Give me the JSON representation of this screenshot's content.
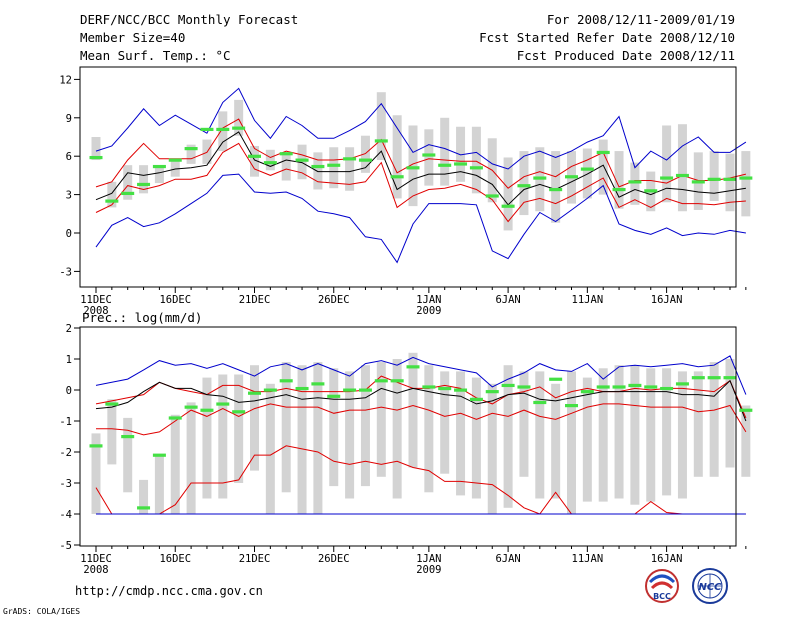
{
  "header": {
    "title": "DERF/NCC/BCC Monthly Forecast",
    "member_size": "Member Size=40",
    "variable": "Mean Surf. Temp.: °C",
    "forecast_period": "For 2008/12/11-2009/01/19",
    "fcst_started": "Fcst Started Refer Date 2008/12/10",
    "fcst_produced": "Fcst Produced Date 2008/12/11"
  },
  "footer": {
    "url": "http://cmdp.ncc.cma.gov.cn",
    "grads": "GrADS: COLA/IGES",
    "logo_bcc": "BCC",
    "logo_ncc": "NCC"
  },
  "colors": {
    "box": "#d3d3d3",
    "median": "#44e044",
    "mean": "#000000",
    "std": "#e00000",
    "extreme": "#0000cc"
  },
  "chart_data": [
    {
      "type": "box",
      "title": "Mean Surf. Temp.: °C",
      "x_tick_labels": [
        "11DEC",
        "16DEC",
        "21DEC",
        "26DEC",
        "1JAN",
        "6JAN",
        "11JAN",
        "16JAN"
      ],
      "x_tick_days": [
        0,
        5,
        10,
        15,
        21,
        26,
        31,
        36
      ],
      "year_labels": [
        {
          "day": 0,
          "text": "2008"
        },
        {
          "day": 21,
          "text": "2009"
        }
      ],
      "ylim": [
        -4,
        13
      ],
      "yticks": [
        -3,
        0,
        3,
        6,
        9,
        12
      ],
      "series": [
        {
          "name": "max",
          "color": "#0000cc",
          "values": [
            6.4,
            6.8,
            8.2,
            9.7,
            8.4,
            9.2,
            8.5,
            7.8,
            10.2,
            11.3,
            8.8,
            7.4,
            9.1,
            8.4,
            7.4,
            7.4,
            8,
            8.7,
            10.1,
            8.2,
            6.3,
            6.9,
            6.6,
            6.1,
            6.3,
            5.4,
            5,
            6,
            6.4,
            5.9,
            6.4,
            7.1,
            7.6,
            9.1,
            5.1,
            6.4,
            5.7,
            6.8,
            7.5,
            6.3,
            6.3,
            7.1
          ]
        },
        {
          "name": "plus_std",
          "color": "#e00000",
          "values": [
            3.6,
            4,
            5.7,
            7,
            5.8,
            5.8,
            5.8,
            6.3,
            8.2,
            8.9,
            6.6,
            5.9,
            6.4,
            6.1,
            5.7,
            5.7,
            5.8,
            6.2,
            7.3,
            4.7,
            5.4,
            5.8,
            5.7,
            5.6,
            5.6,
            4.9,
            3.5,
            4.4,
            4.8,
            4.4,
            5.2,
            5.7,
            6.3,
            3.6,
            4.1,
            4.1,
            3.9,
            4.5,
            4.1,
            4.1,
            4.3,
            4.6
          ]
        },
        {
          "name": "mean",
          "color": "#000000",
          "values": [
            2.6,
            3.1,
            4.7,
            4.5,
            4.7,
            5,
            5.1,
            5.3,
            7.1,
            7.9,
            5.7,
            5.2,
            5.7,
            5.5,
            4.8,
            4.8,
            4.8,
            5.1,
            6.4,
            3.4,
            4.2,
            4.6,
            4.6,
            4.8,
            4.5,
            3.8,
            2.2,
            3.4,
            3.8,
            3.4,
            4,
            4.6,
            5.3,
            2.8,
            3.4,
            3,
            3.5,
            3.4,
            3.2,
            3.1,
            3.3,
            3.5
          ]
        },
        {
          "name": "minus_std",
          "color": "#e00000",
          "values": [
            1.6,
            2.2,
            3.7,
            3.4,
            3.7,
            4.2,
            4.2,
            4.5,
            6.3,
            7,
            5,
            4.5,
            5,
            4.7,
            4,
            3.9,
            3.8,
            4,
            5.5,
            2,
            2.9,
            3.4,
            3.5,
            3.8,
            3.4,
            2.6,
            0.9,
            2.4,
            2.7,
            2.3,
            2.9,
            3.6,
            4.3,
            2,
            2.6,
            2,
            2.7,
            2.3,
            2.3,
            2.2,
            2.4,
            2.5
          ]
        },
        {
          "name": "min",
          "color": "#0000cc",
          "values": [
            -1.1,
            0.6,
            1.2,
            0.5,
            0.8,
            1.5,
            2.3,
            3.1,
            4.5,
            4.6,
            3.2,
            3.1,
            3.2,
            2.7,
            1.7,
            1.5,
            1.2,
            -0.3,
            -0.5,
            -2.3,
            0.7,
            2.3,
            2.3,
            2.3,
            2.2,
            -1.4,
            -2,
            -0.1,
            1.6,
            0.9,
            1.8,
            2.7,
            3.7,
            0.7,
            0.2,
            -0.1,
            0.4,
            -0.2,
            0,
            -0.1,
            0.2,
            0
          ]
        }
      ],
      "boxes": [
        [
          5.7,
          7.5
        ],
        [
          2,
          4
        ],
        [
          2.6,
          5.3
        ],
        [
          3.1,
          5.3
        ],
        [
          3.9,
          5.1
        ],
        [
          4.4,
          5.6
        ],
        [
          5.4,
          6.9
        ],
        [
          5.4,
          7.3
        ],
        [
          6.4,
          9.5
        ],
        [
          7.6,
          10.4
        ],
        [
          4.4,
          6.8
        ],
        [
          4.9,
          6.5
        ],
        [
          4.1,
          6.3
        ],
        [
          4.2,
          6.9
        ],
        [
          3.4,
          6.3
        ],
        [
          3.5,
          6.7
        ],
        [
          3.3,
          6.7
        ],
        [
          4.7,
          7.6
        ],
        [
          5.7,
          11
        ],
        [
          2.7,
          9.2
        ],
        [
          2.1,
          8.4
        ],
        [
          3.7,
          8.1
        ],
        [
          3.7,
          9
        ],
        [
          4,
          8.3
        ],
        [
          3.1,
          8.3
        ],
        [
          2.4,
          7.4
        ],
        [
          0.2,
          5.9
        ],
        [
          1.4,
          6.4
        ],
        [
          1.7,
          6.7
        ],
        [
          0.8,
          6.4
        ],
        [
          2.3,
          6.4
        ],
        [
          2.7,
          6.6
        ],
        [
          3,
          7.3
        ],
        [
          1.9,
          6.4
        ],
        [
          2.2,
          5.5
        ],
        [
          1.7,
          4.8
        ],
        [
          2.4,
          8.4
        ],
        [
          1.7,
          8.5
        ],
        [
          1.8,
          6.3
        ],
        [
          2.5,
          6.4
        ],
        [
          1.7,
          6.2
        ],
        [
          1.3,
          6.4
        ]
      ],
      "medians": [
        5.9,
        2.5,
        3.1,
        3.8,
        5.2,
        5.7,
        6.6,
        8.1,
        8.1,
        8.2,
        6,
        5.5,
        6.2,
        5.7,
        5.2,
        5.3,
        5.8,
        5.7,
        7.2,
        4.4,
        5.1,
        6.1,
        5.3,
        5.4,
        5.1,
        2.9,
        2.1,
        3.7,
        4.3,
        3.4,
        4.4,
        5,
        6.3,
        3.4,
        4,
        3.3,
        4.3,
        4.5,
        4,
        4.2,
        4.2,
        4.3
      ]
    },
    {
      "type": "box",
      "title": "Prec.: log(mm/d)",
      "x_tick_labels": [
        "11DEC",
        "16DEC",
        "21DEC",
        "26DEC",
        "1JAN",
        "6JAN",
        "11JAN",
        "16JAN"
      ],
      "x_tick_days": [
        0,
        5,
        10,
        15,
        21,
        26,
        31,
        36
      ],
      "year_labels": [
        {
          "day": 0,
          "text": "2008"
        },
        {
          "day": 21,
          "text": "2009"
        }
      ],
      "ylim": [
        -5,
        2
      ],
      "yticks": [
        -5,
        -4,
        -3,
        -2,
        -1,
        0,
        1,
        2
      ],
      "series": [
        {
          "name": "max",
          "color": "#0000cc",
          "values": [
            0.15,
            0.25,
            0.35,
            0.65,
            0.95,
            0.8,
            0.85,
            0.7,
            0.85,
            0.65,
            0.45,
            0.75,
            0.85,
            0.65,
            0.85,
            0.65,
            0.45,
            0.85,
            0.95,
            0.8,
            1.05,
            0.85,
            0.75,
            0.65,
            0.55,
            0.1,
            0.35,
            0.55,
            0.85,
            0.65,
            0.6,
            0.85,
            0.35,
            0.75,
            0.8,
            0.75,
            0.8,
            0.85,
            0.75,
            0.8,
            1.1,
            -0.15
          ]
        },
        {
          "name": "plus_std",
          "color": "#e00000",
          "values": [
            -0.45,
            -0.35,
            -0.25,
            -0.15,
            0.25,
            0.05,
            -0.05,
            -0.15,
            0.15,
            0.15,
            -0.05,
            -0.05,
            0.05,
            -0.05,
            -0.05,
            -0.05,
            -0.05,
            0,
            0.45,
            0.25,
            0.05,
            0.05,
            0.15,
            0.05,
            -0.25,
            -0.45,
            -0.15,
            -0.05,
            0.1,
            -0.25,
            -0.05,
            0.05,
            -0.05,
            -0.05,
            0.05,
            0,
            0.05,
            0.05,
            0,
            -0.05,
            0.3,
            -0.9
          ]
        },
        {
          "name": "mean",
          "color": "#000000",
          "values": [
            -0.6,
            -0.55,
            -0.4,
            -0.05,
            0.25,
            0.05,
            0.05,
            -0.15,
            -0.2,
            -0.4,
            -0.35,
            -0.25,
            -0.15,
            -0.3,
            -0.25,
            -0.3,
            -0.3,
            -0.25,
            0.05,
            -0.1,
            0.05,
            -0.05,
            -0.15,
            -0.2,
            -0.45,
            -0.35,
            -0.15,
            -0.1,
            -0.3,
            -0.35,
            -0.25,
            -0.15,
            -0.05,
            -0.05,
            -0.05,
            -0.05,
            -0.05,
            -0.15,
            -0.15,
            -0.2,
            0.3,
            -1
          ]
        },
        {
          "name": "minus_std",
          "color": "#e00000",
          "values": [
            -1.25,
            -1.25,
            -1.3,
            -1.45,
            -1.35,
            -1,
            -0.65,
            -0.85,
            -0.6,
            -0.85,
            -0.6,
            -0.45,
            -0.55,
            -0.55,
            -0.55,
            -0.75,
            -0.65,
            -0.65,
            -0.55,
            -0.65,
            -0.5,
            -0.65,
            -0.85,
            -0.75,
            -0.95,
            -0.75,
            -0.85,
            -0.65,
            -0.85,
            -0.95,
            -0.75,
            -0.55,
            -0.45,
            -0.45,
            -0.5,
            -0.55,
            -0.55,
            -0.55,
            -0.7,
            -0.65,
            -0.5,
            -1.35
          ]
        },
        {
          "name": "low_band",
          "color": "#e00000",
          "values": [
            -3.15,
            -4,
            -4,
            -4,
            -4,
            -3.7,
            -3,
            -3,
            -3,
            -2.9,
            -2.1,
            -2.1,
            -1.8,
            -1.9,
            -2,
            -2.3,
            -2.4,
            -2.3,
            -2.4,
            -2.3,
            -2.5,
            -2.6,
            -2.95,
            -2.95,
            -3,
            -3.05,
            -3.4,
            -3.8,
            -4,
            -3.3,
            -4,
            -4,
            -4,
            -4,
            -4,
            -3.6,
            -3.95,
            -4,
            -4,
            -4,
            -4,
            -4
          ]
        },
        {
          "name": "min",
          "color": "#0000cc",
          "values": [
            -4,
            -4,
            -4,
            -4,
            -4,
            -4,
            -4,
            -4,
            -4,
            -4,
            -4,
            -4,
            -4,
            -4,
            -4,
            -4,
            -4,
            -4,
            -4,
            -4,
            -4,
            -4,
            -4,
            -4,
            -4,
            -4,
            -4,
            -4,
            -4,
            -4,
            -4,
            -4,
            -4,
            -4,
            -4,
            -4,
            -4,
            -4,
            -4,
            -4,
            -4,
            -4
          ]
        }
      ],
      "boxes": [
        [
          -4,
          -1.4
        ],
        [
          -2.4,
          -0.3
        ],
        [
          -3.3,
          -0.9
        ],
        [
          -4,
          -2.9
        ],
        [
          -4,
          -2.1
        ],
        [
          -4,
          -0.8
        ],
        [
          -4,
          -0.4
        ],
        [
          -3.5,
          0.4
        ],
        [
          -3.5,
          0.5
        ],
        [
          -3,
          0.5
        ],
        [
          -2.6,
          0.8
        ],
        [
          -4,
          0.2
        ],
        [
          -3.3,
          0.9
        ],
        [
          -4,
          0.8
        ],
        [
          -4,
          0.9
        ],
        [
          -3.1,
          0.7
        ],
        [
          -3.5,
          0.6
        ],
        [
          -3.1,
          0.8
        ],
        [
          -2.8,
          0.9
        ],
        [
          -3.5,
          1
        ],
        [
          -2.5,
          1.2
        ],
        [
          -3.3,
          0.8
        ],
        [
          -2.7,
          0.6
        ],
        [
          -3.4,
          0.6
        ],
        [
          -3.5,
          0.4
        ],
        [
          -4,
          0.2
        ],
        [
          -3.8,
          0.8
        ],
        [
          -2.8,
          0.6
        ],
        [
          -3.5,
          0.6
        ],
        [
          -3.5,
          0.2
        ],
        [
          -4,
          0.6
        ],
        [
          -3.6,
          0.4
        ],
        [
          -3.6,
          0.7
        ],
        [
          -3.5,
          0.8
        ],
        [
          -3.7,
          0.8
        ],
        [
          -3.6,
          0.7
        ],
        [
          -3.4,
          0.7
        ],
        [
          -3.5,
          0.6
        ],
        [
          -2.8,
          0.6
        ],
        [
          -2.8,
          0.9
        ],
        [
          -2.5,
          1
        ],
        [
          -2.8,
          -0.5
        ]
      ],
      "medians": [
        -1.8,
        -0.45,
        -1.5,
        -3.8,
        -2.1,
        -0.9,
        -0.55,
        -0.65,
        -0.45,
        -0.7,
        -0.1,
        0,
        0.3,
        0.05,
        0.2,
        -0.2,
        0,
        0,
        0.3,
        0.3,
        0.75,
        0.1,
        0.05,
        0,
        -0.3,
        -0.05,
        0.15,
        0.1,
        -0.4,
        0.35,
        -0.5,
        -0.05,
        0.1,
        0.1,
        0.15,
        0.1,
        0.05,
        0.2,
        0.4,
        0.4,
        0.4,
        -0.65
      ]
    }
  ]
}
